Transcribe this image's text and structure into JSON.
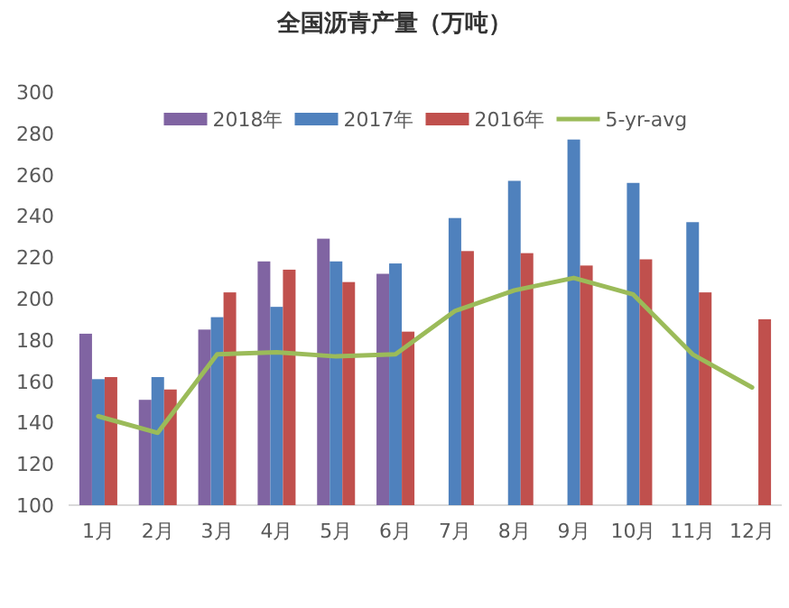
{
  "chart_data": {
    "type": "bar",
    "title": "全国沥青产量（万吨）",
    "categories": [
      "1月",
      "2月",
      "3月",
      "4月",
      "5月",
      "6月",
      "7月",
      "8月",
      "9月",
      "10月",
      "11月",
      "12月"
    ],
    "series": [
      {
        "name": "2018年",
        "color": "#8064a2",
        "values": [
          183,
          151,
          185,
          218,
          229,
          212,
          null,
          null,
          null,
          null,
          null,
          null
        ]
      },
      {
        "name": "2017年",
        "color": "#4f81bd",
        "values": [
          161,
          162,
          191,
          196,
          218,
          217,
          239,
          257,
          277,
          256,
          237,
          null
        ]
      },
      {
        "name": "2016年",
        "color": "#c0504d",
        "values": [
          162,
          156,
          203,
          214,
          208,
          184,
          223,
          222,
          216,
          219,
          203,
          190
        ]
      },
      {
        "name": "5-yr-avg",
        "color": "#9bbb59",
        "type": "line",
        "values": [
          143,
          135,
          173,
          174,
          172,
          173,
          194,
          204,
          210,
          202,
          173,
          157
        ]
      }
    ],
    "ylim": [
      100,
      300
    ],
    "yticks": [
      100,
      120,
      140,
      160,
      180,
      200,
      220,
      240,
      260,
      280,
      300
    ],
    "grid": false,
    "legend": "top"
  }
}
